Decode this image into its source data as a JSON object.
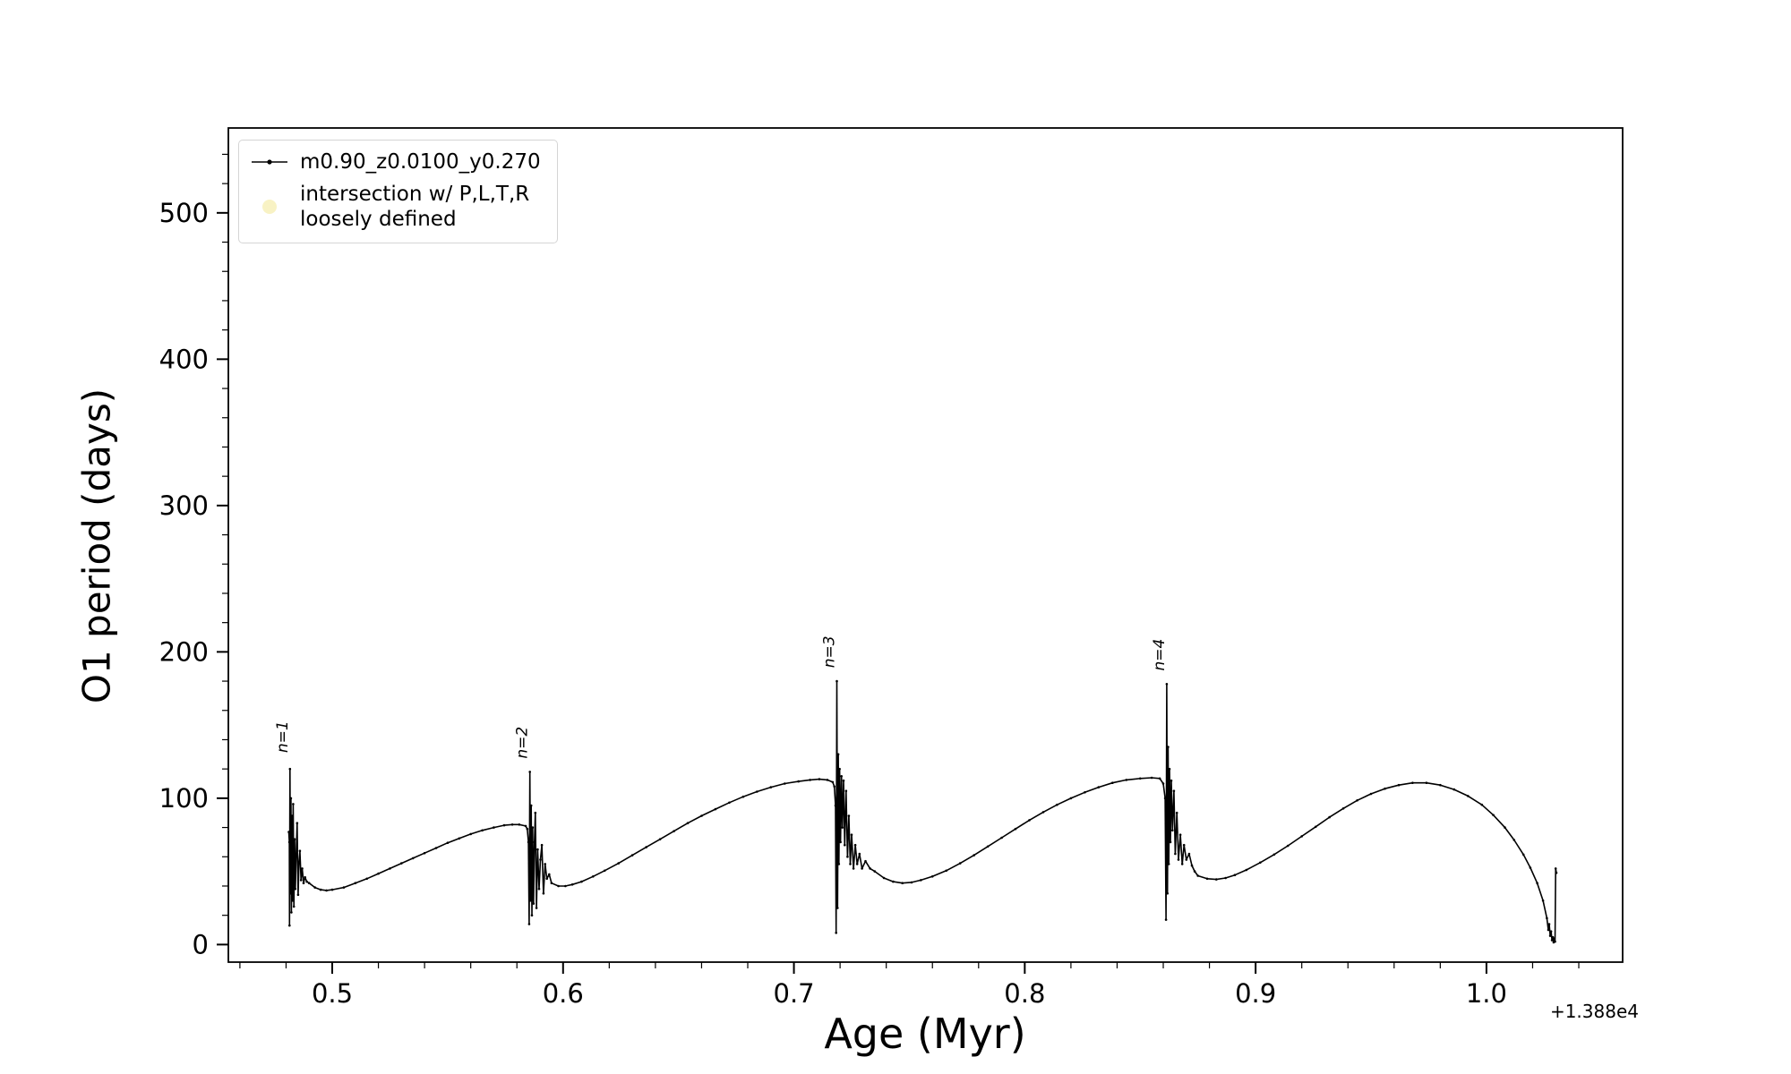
{
  "chart_data": {
    "type": "line",
    "title": "",
    "xlabel": "Age (Myr)",
    "ylabel": "O1 period (days)",
    "x_offset_text": "+1.388e4",
    "xlim": [
      0.455,
      1.059
    ],
    "ylim": [
      -12,
      558
    ],
    "grid": false,
    "legend_position": "upper left",
    "xticks": [
      {
        "v": 0.5,
        "label": "0.5"
      },
      {
        "v": 0.6,
        "label": "0.6"
      },
      {
        "v": 0.7,
        "label": "0.7"
      },
      {
        "v": 0.8,
        "label": "0.8"
      },
      {
        "v": 0.9,
        "label": "0.9"
      },
      {
        "v": 1.0,
        "label": "1.0"
      }
    ],
    "xminor_step": 0.02,
    "yticks": [
      {
        "v": 0,
        "label": "0"
      },
      {
        "v": 100,
        "label": "100"
      },
      {
        "v": 200,
        "label": "200"
      },
      {
        "v": 300,
        "label": "300"
      },
      {
        "v": 400,
        "label": "400"
      },
      {
        "v": 500,
        "label": "500"
      }
    ],
    "yminor_step": 20,
    "annotations": [
      {
        "text": "n=1",
        "x": 0.4817,
        "y": 128,
        "rotation": -90
      },
      {
        "text": "n=2",
        "x": 0.5856,
        "y": 124,
        "rotation": -90
      },
      {
        "text": "n=3",
        "x": 0.7186,
        "y": 186,
        "rotation": -90
      },
      {
        "text": "n=4",
        "x": 0.8615,
        "y": 184,
        "rotation": -90
      }
    ],
    "series": [
      {
        "name": "m0.90_z0.0100_y0.270",
        "color": "#000000",
        "marker": "point",
        "points": [
          [
            0.4812,
            77
          ],
          [
            0.4814,
            70
          ],
          [
            0.4815,
            13
          ],
          [
            0.4817,
            120
          ],
          [
            0.4819,
            35
          ],
          [
            0.4821,
            100
          ],
          [
            0.4823,
            22
          ],
          [
            0.4825,
            88
          ],
          [
            0.4828,
            30
          ],
          [
            0.4831,
            96
          ],
          [
            0.4834,
            26
          ],
          [
            0.4837,
            72
          ],
          [
            0.484,
            38
          ],
          [
            0.4844,
            62
          ],
          [
            0.4848,
            83
          ],
          [
            0.4852,
            34
          ],
          [
            0.4856,
            56
          ],
          [
            0.486,
            64
          ],
          [
            0.4865,
            44
          ],
          [
            0.487,
            52
          ],
          [
            0.4876,
            42
          ],
          [
            0.4882,
            46
          ],
          [
            0.489,
            43
          ],
          [
            0.49,
            42
          ],
          [
            0.4925,
            39
          ],
          [
            0.495,
            37.5
          ],
          [
            0.4975,
            37
          ],
          [
            0.5,
            37.5
          ],
          [
            0.505,
            39
          ],
          [
            0.51,
            42
          ],
          [
            0.515,
            45
          ],
          [
            0.52,
            48.5
          ],
          [
            0.525,
            52
          ],
          [
            0.53,
            55.5
          ],
          [
            0.535,
            59
          ],
          [
            0.54,
            62.5
          ],
          [
            0.545,
            66
          ],
          [
            0.55,
            69.5
          ],
          [
            0.555,
            72.5
          ],
          [
            0.56,
            75.5
          ],
          [
            0.565,
            78
          ],
          [
            0.57,
            80
          ],
          [
            0.5745,
            81.5
          ],
          [
            0.578,
            82
          ],
          [
            0.581,
            82
          ],
          [
            0.5838,
            81
          ],
          [
            0.5845,
            79
          ],
          [
            0.585,
            70
          ],
          [
            0.5853,
            14
          ],
          [
            0.5856,
            118
          ],
          [
            0.5859,
            30
          ],
          [
            0.5862,
            95
          ],
          [
            0.5865,
            20
          ],
          [
            0.5868,
            80
          ],
          [
            0.5872,
            28
          ],
          [
            0.5876,
            70
          ],
          [
            0.588,
            90
          ],
          [
            0.5885,
            25
          ],
          [
            0.589,
            65
          ],
          [
            0.5896,
            38
          ],
          [
            0.5902,
            58
          ],
          [
            0.5908,
            68
          ],
          [
            0.5915,
            35
          ],
          [
            0.5922,
            55
          ],
          [
            0.593,
            45
          ],
          [
            0.594,
            48
          ],
          [
            0.595,
            42
          ],
          [
            0.598,
            40
          ],
          [
            0.601,
            40
          ],
          [
            0.604,
            41
          ],
          [
            0.608,
            43
          ],
          [
            0.613,
            46.5
          ],
          [
            0.618,
            50.5
          ],
          [
            0.624,
            55.5
          ],
          [
            0.63,
            61
          ],
          [
            0.636,
            66.5
          ],
          [
            0.642,
            72
          ],
          [
            0.648,
            77.5
          ],
          [
            0.654,
            83
          ],
          [
            0.66,
            88
          ],
          [
            0.666,
            92.5
          ],
          [
            0.672,
            97
          ],
          [
            0.678,
            101
          ],
          [
            0.684,
            104.5
          ],
          [
            0.69,
            107.5
          ],
          [
            0.696,
            110
          ],
          [
            0.702,
            111.5
          ],
          [
            0.707,
            112.5
          ],
          [
            0.711,
            113
          ],
          [
            0.7145,
            112.5
          ],
          [
            0.7168,
            111
          ],
          [
            0.7175,
            108
          ],
          [
            0.718,
            95
          ],
          [
            0.7183,
            8
          ],
          [
            0.7186,
            180
          ],
          [
            0.7189,
            25
          ],
          [
            0.7192,
            130
          ],
          [
            0.7195,
            55
          ],
          [
            0.7198,
            120
          ],
          [
            0.7202,
            70
          ],
          [
            0.7206,
            115
          ],
          [
            0.721,
            80
          ],
          [
            0.7215,
            112
          ],
          [
            0.722,
            68
          ],
          [
            0.7226,
            105
          ],
          [
            0.7232,
            60
          ],
          [
            0.7238,
            88
          ],
          [
            0.7244,
            55
          ],
          [
            0.725,
            75
          ],
          [
            0.7258,
            52
          ],
          [
            0.7266,
            68
          ],
          [
            0.7274,
            55
          ],
          [
            0.7284,
            62
          ],
          [
            0.7295,
            52
          ],
          [
            0.731,
            57
          ],
          [
            0.733,
            52
          ],
          [
            0.735,
            50
          ],
          [
            0.739,
            45.5
          ],
          [
            0.743,
            43
          ],
          [
            0.747,
            42
          ],
          [
            0.751,
            42.5
          ],
          [
            0.755,
            44
          ],
          [
            0.76,
            46.5
          ],
          [
            0.766,
            50.5
          ],
          [
            0.772,
            55.5
          ],
          [
            0.778,
            61
          ],
          [
            0.784,
            67
          ],
          [
            0.79,
            73
          ],
          [
            0.796,
            79
          ],
          [
            0.802,
            85
          ],
          [
            0.808,
            90.5
          ],
          [
            0.814,
            95.5
          ],
          [
            0.82,
            100
          ],
          [
            0.826,
            104
          ],
          [
            0.832,
            107.5
          ],
          [
            0.838,
            110.5
          ],
          [
            0.844,
            112.5
          ],
          [
            0.85,
            113.5
          ],
          [
            0.855,
            114
          ],
          [
            0.8585,
            113.5
          ],
          [
            0.86,
            110
          ],
          [
            0.8608,
            100
          ],
          [
            0.8612,
            17
          ],
          [
            0.8615,
            178
          ],
          [
            0.8618,
            35
          ],
          [
            0.8621,
            135
          ],
          [
            0.8624,
            55
          ],
          [
            0.8627,
            120
          ],
          [
            0.8631,
            70
          ],
          [
            0.8635,
            112
          ],
          [
            0.864,
            78
          ],
          [
            0.8646,
            105
          ],
          [
            0.8652,
            62
          ],
          [
            0.8659,
            90
          ],
          [
            0.8666,
            58
          ],
          [
            0.8674,
            75
          ],
          [
            0.8682,
            55
          ],
          [
            0.869,
            68
          ],
          [
            0.87,
            58
          ],
          [
            0.8712,
            62
          ],
          [
            0.8724,
            54
          ],
          [
            0.8736,
            50
          ],
          [
            0.875,
            47
          ],
          [
            0.879,
            45
          ],
          [
            0.883,
            44.5
          ],
          [
            0.887,
            45.5
          ],
          [
            0.891,
            47.5
          ],
          [
            0.896,
            51
          ],
          [
            0.902,
            56
          ],
          [
            0.908,
            61.5
          ],
          [
            0.914,
            67.5
          ],
          [
            0.92,
            74
          ],
          [
            0.926,
            80.5
          ],
          [
            0.932,
            87
          ],
          [
            0.938,
            93
          ],
          [
            0.944,
            98.5
          ],
          [
            0.95,
            103
          ],
          [
            0.956,
            106.5
          ],
          [
            0.962,
            109
          ],
          [
            0.968,
            110.5
          ],
          [
            0.974,
            110.5
          ],
          [
            0.98,
            109
          ],
          [
            0.986,
            106
          ],
          [
            0.992,
            101.5
          ],
          [
            0.998,
            95.5
          ],
          [
            1.003,
            88.5
          ],
          [
            1.008,
            80
          ],
          [
            1.012,
            71.5
          ],
          [
            1.016,
            61.5
          ],
          [
            1.019,
            52.5
          ],
          [
            1.022,
            42
          ],
          [
            1.0245,
            30
          ],
          [
            1.0262,
            18
          ],
          [
            1.0268,
            10
          ],
          [
            1.0272,
            14
          ],
          [
            1.0276,
            6
          ],
          [
            1.028,
            9
          ],
          [
            1.0284,
            3
          ],
          [
            1.0288,
            5
          ],
          [
            1.0291,
            1.5
          ],
          [
            1.0294,
            4
          ],
          [
            1.0297,
            2
          ],
          [
            1.03,
            52
          ],
          [
            1.0303,
            49
          ]
        ]
      }
    ],
    "legend": {
      "entries": [
        {
          "label": "m0.90_z0.0100_y0.270",
          "marker": "line-dot",
          "color": "#000000"
        },
        {
          "line1": "intersection w/ P,L,T,R",
          "line2": "loosely defined",
          "marker": "circle",
          "color": "#f5eeb0"
        }
      ]
    }
  }
}
